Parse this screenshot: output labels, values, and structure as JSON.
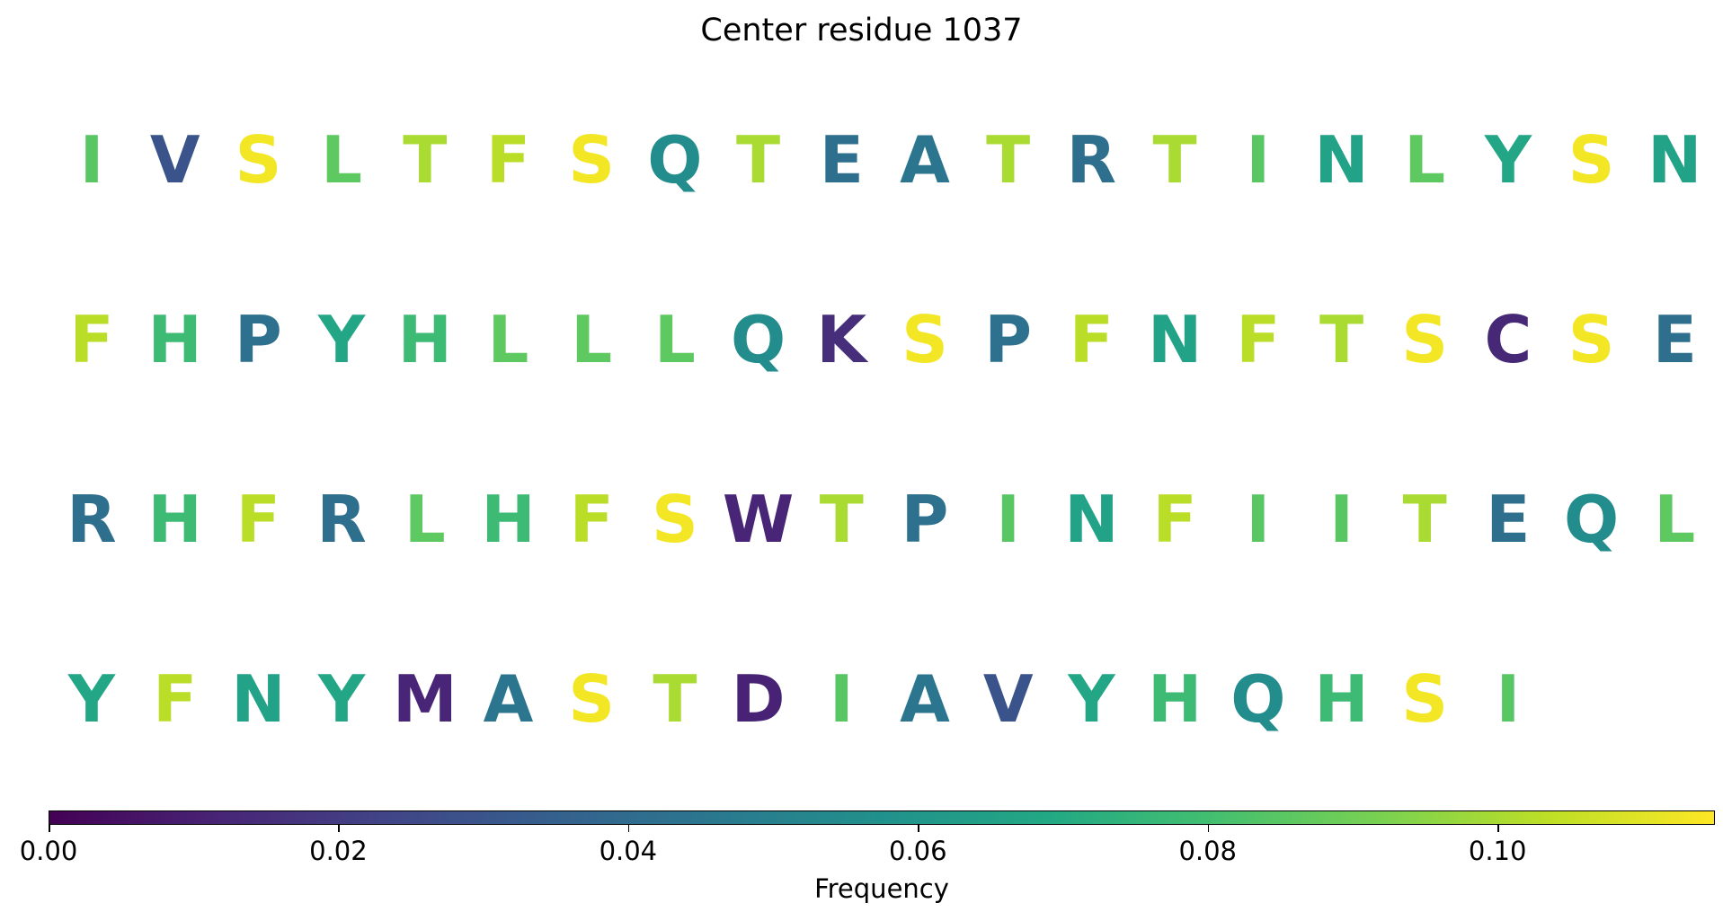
{
  "chart_data": {
    "type": "heatmap",
    "title": "Center residue 1037",
    "colorbar": {
      "label": "Frequency",
      "cmap": "viridis",
      "range": [
        0.0,
        0.115
      ],
      "ticks": [
        0.0,
        0.02,
        0.04,
        0.06,
        0.08,
        0.1
      ],
      "tick_labels": [
        "0.00",
        "0.02",
        "0.04",
        "0.06",
        "0.08",
        "0.10"
      ]
    },
    "columns_per_row": 20,
    "residues": [
      {
        "letter": "I",
        "value": 0.085
      },
      {
        "letter": "V",
        "value": 0.03
      },
      {
        "letter": "S",
        "value": 0.113
      },
      {
        "letter": "L",
        "value": 0.086
      },
      {
        "letter": "T",
        "value": 0.1
      },
      {
        "letter": "F",
        "value": 0.103
      },
      {
        "letter": "S",
        "value": 0.113
      },
      {
        "letter": "Q",
        "value": 0.055
      },
      {
        "letter": "T",
        "value": 0.1
      },
      {
        "letter": "E",
        "value": 0.042
      },
      {
        "letter": "A",
        "value": 0.045
      },
      {
        "letter": "T",
        "value": 0.1
      },
      {
        "letter": "R",
        "value": 0.042
      },
      {
        "letter": "T",
        "value": 0.1
      },
      {
        "letter": "I",
        "value": 0.085
      },
      {
        "letter": "N",
        "value": 0.066
      },
      {
        "letter": "L",
        "value": 0.086
      },
      {
        "letter": "Y",
        "value": 0.068
      },
      {
        "letter": "S",
        "value": 0.113
      },
      {
        "letter": "N",
        "value": 0.066
      },
      {
        "letter": "F",
        "value": 0.103
      },
      {
        "letter": "H",
        "value": 0.078
      },
      {
        "letter": "P",
        "value": 0.043
      },
      {
        "letter": "Y",
        "value": 0.068
      },
      {
        "letter": "H",
        "value": 0.078
      },
      {
        "letter": "L",
        "value": 0.086
      },
      {
        "letter": "L",
        "value": 0.086
      },
      {
        "letter": "L",
        "value": 0.086
      },
      {
        "letter": "Q",
        "value": 0.055
      },
      {
        "letter": "K",
        "value": 0.015
      },
      {
        "letter": "S",
        "value": 0.113
      },
      {
        "letter": "P",
        "value": 0.043
      },
      {
        "letter": "F",
        "value": 0.103
      },
      {
        "letter": "N",
        "value": 0.066
      },
      {
        "letter": "F",
        "value": 0.103
      },
      {
        "letter": "T",
        "value": 0.1
      },
      {
        "letter": "S",
        "value": 0.113
      },
      {
        "letter": "C",
        "value": 0.013
      },
      {
        "letter": "S",
        "value": 0.113
      },
      {
        "letter": "E",
        "value": 0.042
      },
      {
        "letter": "R",
        "value": 0.042
      },
      {
        "letter": "H",
        "value": 0.078
      },
      {
        "letter": "F",
        "value": 0.103
      },
      {
        "letter": "R",
        "value": 0.042
      },
      {
        "letter": "L",
        "value": 0.086
      },
      {
        "letter": "H",
        "value": 0.078
      },
      {
        "letter": "F",
        "value": 0.103
      },
      {
        "letter": "S",
        "value": 0.113
      },
      {
        "letter": "W",
        "value": 0.012
      },
      {
        "letter": "T",
        "value": 0.1
      },
      {
        "letter": "P",
        "value": 0.043
      },
      {
        "letter": "I",
        "value": 0.085
      },
      {
        "letter": "N",
        "value": 0.066
      },
      {
        "letter": "F",
        "value": 0.103
      },
      {
        "letter": "I",
        "value": 0.085
      },
      {
        "letter": "I",
        "value": 0.085
      },
      {
        "letter": "T",
        "value": 0.1
      },
      {
        "letter": "E",
        "value": 0.042
      },
      {
        "letter": "Q",
        "value": 0.055
      },
      {
        "letter": "L",
        "value": 0.086
      },
      {
        "letter": "Y",
        "value": 0.068
      },
      {
        "letter": "F",
        "value": 0.103
      },
      {
        "letter": "N",
        "value": 0.066
      },
      {
        "letter": "Y",
        "value": 0.068
      },
      {
        "letter": "M",
        "value": 0.012
      },
      {
        "letter": "A",
        "value": 0.045
      },
      {
        "letter": "S",
        "value": 0.113
      },
      {
        "letter": "T",
        "value": 0.1
      },
      {
        "letter": "D",
        "value": 0.011
      },
      {
        "letter": "I",
        "value": 0.085
      },
      {
        "letter": "A",
        "value": 0.045
      },
      {
        "letter": "V",
        "value": 0.03
      },
      {
        "letter": "Y",
        "value": 0.068
      },
      {
        "letter": "H",
        "value": 0.078
      },
      {
        "letter": "Q",
        "value": 0.055
      },
      {
        "letter": "H",
        "value": 0.078
      },
      {
        "letter": "S",
        "value": 0.113
      },
      {
        "letter": "I",
        "value": 0.085
      }
    ]
  }
}
